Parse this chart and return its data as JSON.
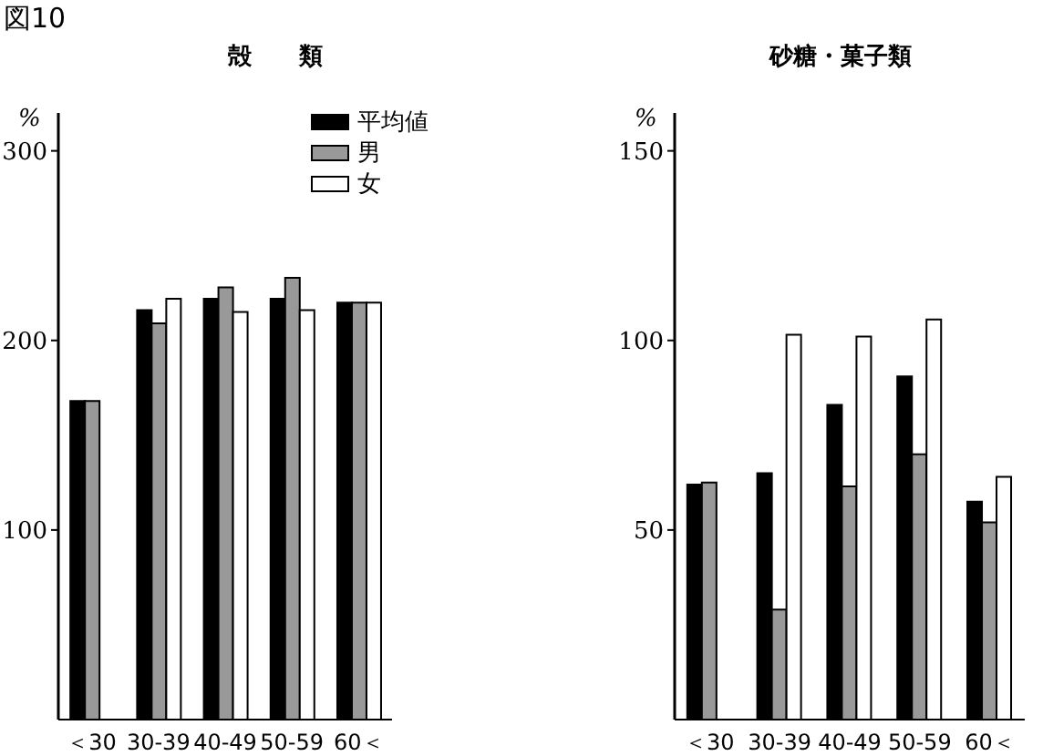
{
  "chart_data": [
    {
      "type": "bar",
      "title": "殻　　類",
      "ylabel": "%",
      "annotations": [
        "図10"
      ],
      "categories": [
        "＜30",
        "30-39",
        "40-49",
        "50-59",
        "60＜"
      ],
      "series": [
        {
          "name": "平均値",
          "color": "#000000",
          "values": [
            168,
            216,
            222,
            222,
            220
          ]
        },
        {
          "name": "男",
          "color": "#999999",
          "values": [
            168,
            209,
            228,
            233,
            220
          ]
        },
        {
          "name": "女",
          "color": "#ffffff",
          "values": [
            null,
            222,
            215,
            216,
            220
          ]
        }
      ],
      "ylim": [
        0,
        320
      ],
      "yticks": [
        100,
        200,
        300
      ],
      "grid": false,
      "legend": "top right"
    },
    {
      "type": "bar",
      "title": "砂糖・菓子類",
      "ylabel": "%",
      "categories": [
        "＜30",
        "30-39",
        "40-49",
        "50-59",
        "60＜"
      ],
      "series": [
        {
          "color": "#000000",
          "values": [
            62,
            65,
            83,
            90.5,
            57.5
          ]
        },
        {
          "color": "#999999",
          "values": [
            62.5,
            29,
            61.5,
            70,
            52
          ]
        },
        {
          "color": "#ffffff",
          "values": [
            null,
            101.5,
            101,
            105.5,
            64
          ]
        }
      ],
      "ylim": [
        0,
        160
      ],
      "yticks": [
        50,
        100,
        150
      ],
      "grid": false,
      "legend": false
    }
  ]
}
